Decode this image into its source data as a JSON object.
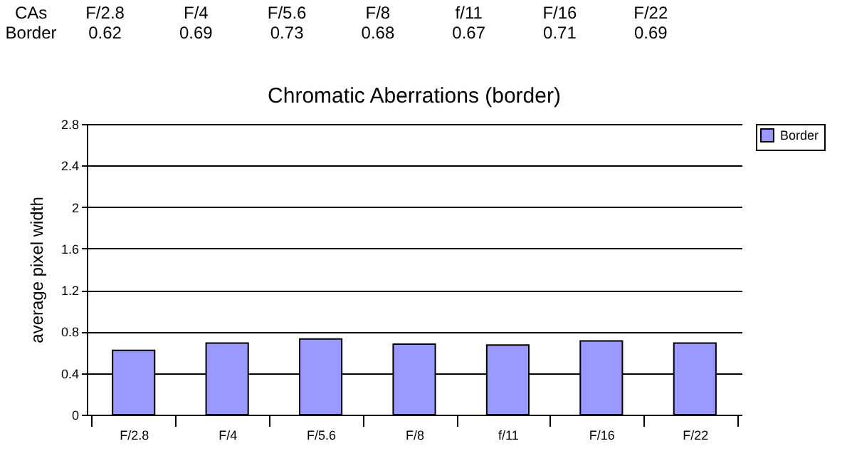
{
  "chart_data": {
    "type": "bar",
    "title": "Chromatic Aberrations (border)",
    "ylabel": "average pixel width",
    "categories": [
      "F/2.8",
      "F/4",
      "F/5.6",
      "F/8",
      "f/11",
      "F/16",
      "F/22"
    ],
    "series": [
      {
        "name": "Border",
        "color": "#9999ff",
        "values": [
          0.62,
          0.69,
          0.73,
          0.68,
          0.67,
          0.71,
          0.69
        ]
      }
    ],
    "ylim": [
      0,
      2.8
    ],
    "yticks": [
      0,
      0.4,
      0.8,
      1.2,
      1.6,
      2,
      2.4,
      2.8
    ],
    "grid": "y",
    "legend": "right",
    "data_labels": true,
    "annotations": [
      "CAs"
    ]
  }
}
